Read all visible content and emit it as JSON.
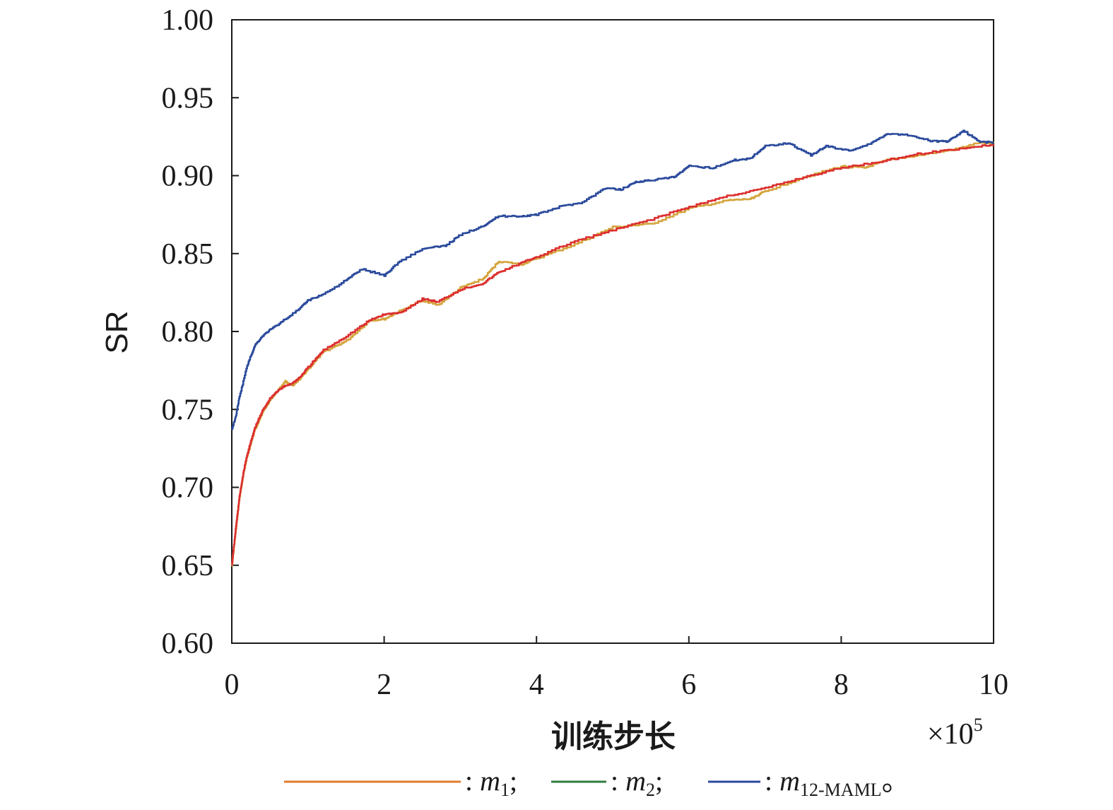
{
  "chart_data": {
    "type": "line",
    "ylabel": "SR",
    "xlabel": "训练步长",
    "x_multiplier": "×10",
    "x_multiplier_exp": "5",
    "xlim": [
      0,
      10
    ],
    "ylim": [
      0.6,
      1.0
    ],
    "xticks": [
      0,
      2,
      4,
      6,
      8,
      10
    ],
    "xtick_labels": [
      "0",
      "2",
      "4",
      "6",
      "8",
      "10"
    ],
    "yticks": [
      0.6,
      0.65,
      0.7,
      0.75,
      0.8,
      0.85,
      0.9,
      0.95,
      1.0
    ],
    "ytick_labels": [
      "0.60",
      "0.65",
      "0.70",
      "0.75",
      "0.80",
      "0.85",
      "0.90",
      "0.95",
      "1.00"
    ],
    "grid": false,
    "legend_position": "bottom",
    "series": [
      {
        "legend_symbol": "m",
        "legend_subscript": "1",
        "legend_suffix": ";",
        "color": "#d4a43c",
        "x": [
          0,
          0.05,
          0.1,
          0.15,
          0.2,
          0.3,
          0.4,
          0.5,
          0.6,
          0.7,
          0.8,
          0.9,
          1.0,
          1.2,
          1.5,
          1.8,
          2.0,
          2.2,
          2.5,
          2.7,
          3.0,
          3.3,
          3.5,
          3.8,
          4.0,
          4.5,
          5.0,
          5.5,
          6.0,
          6.5,
          6.8,
          7.0,
          7.5,
          8.0,
          8.3,
          8.6,
          9.0,
          9.5,
          9.8,
          10.0
        ],
        "y": [
          0.65,
          0.672,
          0.693,
          0.708,
          0.72,
          0.737,
          0.748,
          0.756,
          0.762,
          0.768,
          0.765,
          0.77,
          0.776,
          0.787,
          0.794,
          0.807,
          0.808,
          0.813,
          0.82,
          0.817,
          0.828,
          0.834,
          0.845,
          0.843,
          0.847,
          0.856,
          0.867,
          0.869,
          0.879,
          0.884,
          0.885,
          0.89,
          0.899,
          0.906,
          0.905,
          0.91,
          0.913,
          0.917,
          0.921,
          0.921
        ]
      },
      {
        "legend_symbol": "m",
        "legend_subscript": "2",
        "legend_suffix": ";",
        "color": "#dc2f2f",
        "x": [
          0,
          0.05,
          0.1,
          0.15,
          0.2,
          0.3,
          0.4,
          0.5,
          0.6,
          0.7,
          0.8,
          0.9,
          1.0,
          1.2,
          1.5,
          1.8,
          2.0,
          2.2,
          2.5,
          2.7,
          3.0,
          3.3,
          3.5,
          3.8,
          4.0,
          4.5,
          5.0,
          5.5,
          6.0,
          6.5,
          7.0,
          7.5,
          8.0,
          8.5,
          9.0,
          9.5,
          10.0
        ],
        "y": [
          0.65,
          0.673,
          0.694,
          0.709,
          0.721,
          0.738,
          0.749,
          0.757,
          0.762,
          0.765,
          0.767,
          0.771,
          0.777,
          0.788,
          0.797,
          0.807,
          0.811,
          0.812,
          0.821,
          0.819,
          0.827,
          0.831,
          0.838,
          0.844,
          0.848,
          0.858,
          0.865,
          0.872,
          0.88,
          0.887,
          0.892,
          0.899,
          0.905,
          0.909,
          0.914,
          0.917,
          0.92
        ]
      },
      {
        "legend_symbol": "m",
        "legend_subscript": "12-MAML",
        "legend_suffix": "。",
        "color": "#2b4a9c",
        "x": [
          0,
          0.05,
          0.1,
          0.2,
          0.3,
          0.4,
          0.5,
          0.7,
          0.9,
          1.0,
          1.2,
          1.5,
          1.7,
          2.0,
          2.2,
          2.5,
          2.8,
          3.0,
          3.3,
          3.5,
          3.8,
          4.0,
          4.3,
          4.6,
          4.9,
          5.1,
          5.3,
          5.5,
          5.8,
          6.0,
          6.3,
          6.6,
          6.8,
          7.0,
          7.3,
          7.6,
          7.8,
          8.1,
          8.4,
          8.6,
          8.9,
          9.2,
          9.4,
          9.6,
          9.8,
          10.0
        ],
        "y": [
          0.737,
          0.745,
          0.758,
          0.778,
          0.791,
          0.797,
          0.801,
          0.808,
          0.815,
          0.82,
          0.824,
          0.833,
          0.84,
          0.836,
          0.845,
          0.853,
          0.855,
          0.862,
          0.868,
          0.874,
          0.874,
          0.875,
          0.88,
          0.883,
          0.892,
          0.891,
          0.896,
          0.897,
          0.899,
          0.906,
          0.905,
          0.91,
          0.911,
          0.919,
          0.921,
          0.913,
          0.919,
          0.916,
          0.921,
          0.927,
          0.926,
          0.922,
          0.922,
          0.929,
          0.922,
          0.921
        ]
      }
    ]
  }
}
